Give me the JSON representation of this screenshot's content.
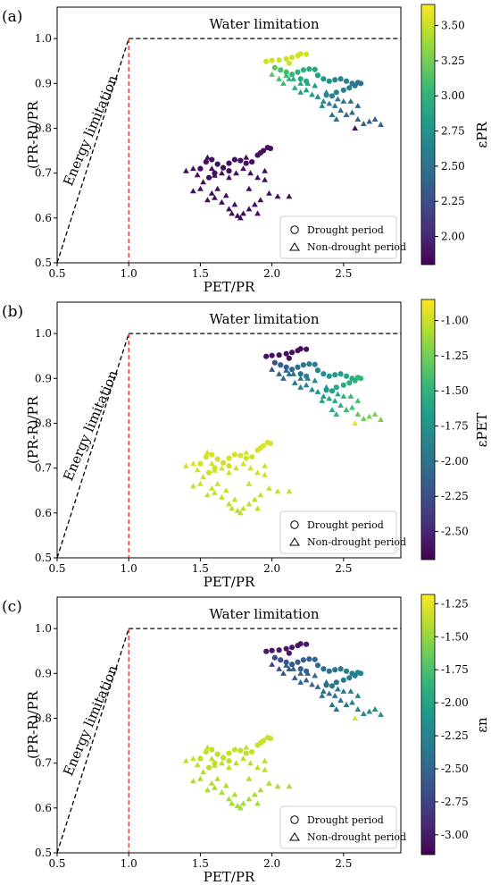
{
  "figure": {
    "colormap": [
      "#440154",
      "#482878",
      "#3e4989",
      "#31688e",
      "#26828e",
      "#1f9e89",
      "#35b779",
      "#6ece58",
      "#b5de2b",
      "#fde725"
    ],
    "legend": {
      "drought": "Drought period",
      "nondrought": "Non-drought period"
    },
    "boundary_colors": {
      "limits": "#000000",
      "pet_equals_pr": "#e8281e"
    }
  },
  "chart_data": [
    {
      "type": "scatter",
      "panel_label": "(a)",
      "xlabel": "PET/PR",
      "ylabel": "(PR-R)/PR",
      "xlim": [
        0.5,
        2.9
      ],
      "ylim": [
        0.5,
        1.07
      ],
      "xticks": [
        "0.5",
        "1.0",
        "1.5",
        "2.0",
        "2.5"
      ],
      "yticks": [
        "0.5",
        "0.6",
        "0.7",
        "0.8",
        "0.9",
        "1.0"
      ],
      "annotations": {
        "water": "Water limitation",
        "energy": "Energy limitation"
      },
      "colorbar": {
        "label": "εPR",
        "range": [
          1.8,
          3.65
        ],
        "ticks": [
          "2.00",
          "2.25",
          "2.50",
          "2.75",
          "3.00",
          "3.25",
          "3.50"
        ]
      }
    },
    {
      "type": "scatter",
      "panel_label": "(b)",
      "xlabel": "PET/PR",
      "ylabel": "(PR-R)/PR",
      "xlim": [
        0.5,
        2.9
      ],
      "ylim": [
        0.5,
        1.07
      ],
      "xticks": [
        "0.5",
        "1.0",
        "1.5",
        "2.0",
        "2.5"
      ],
      "yticks": [
        "0.5",
        "0.6",
        "0.7",
        "0.8",
        "0.9",
        "1.0"
      ],
      "annotations": {
        "water": "Water limitation",
        "energy": "Energy limitation"
      },
      "colorbar": {
        "label": "εPET",
        "range": [
          -2.7,
          -0.85
        ],
        "ticks": [
          "-1.00",
          "-1.25",
          "-1.50",
          "-1.75",
          "-2.00",
          "-2.25",
          "-2.50"
        ]
      }
    },
    {
      "type": "scatter",
      "panel_label": "(c)",
      "xlabel": "PET/PR",
      "ylabel": "(PR-R)/PR",
      "xlim": [
        0.5,
        2.9
      ],
      "ylim": [
        0.5,
        1.07
      ],
      "xticks": [
        "0.5",
        "1.0",
        "1.5",
        "2.0",
        "2.5"
      ],
      "yticks": [
        "0.5",
        "0.6",
        "0.7",
        "0.8",
        "0.9",
        "1.0"
      ],
      "annotations": {
        "water": "Water limitation",
        "energy": "Energy limitation"
      },
      "colorbar": {
        "label": "εn",
        "range": [
          -3.15,
          -1.18
        ],
        "ticks": [
          "-1.25",
          "-1.50",
          "-1.75",
          "-2.00",
          "-2.25",
          "-2.50",
          "-2.75",
          "-3.00"
        ]
      }
    }
  ],
  "points": {
    "drought": [
      [
        2.2,
        0.966
      ],
      [
        2.18,
        0.962
      ],
      [
        2.14,
        0.958
      ],
      [
        2.1,
        0.955
      ],
      [
        2.05,
        0.952
      ],
      [
        2.0,
        0.951
      ],
      [
        1.96,
        0.949
      ],
      [
        2.24,
        0.965
      ],
      [
        2.12,
        0.945
      ],
      [
        2.02,
        0.935
      ],
      [
        2.06,
        0.93
      ],
      [
        2.1,
        0.925
      ],
      [
        2.14,
        0.92
      ],
      [
        2.18,
        0.925
      ],
      [
        2.22,
        0.93
      ],
      [
        2.26,
        0.932
      ],
      [
        2.3,
        0.931
      ],
      [
        2.2,
        0.91
      ],
      [
        2.24,
        0.905
      ],
      [
        2.32,
        0.918
      ],
      [
        2.36,
        0.91
      ],
      [
        2.4,
        0.905
      ],
      [
        2.44,
        0.908
      ],
      [
        2.48,
        0.91
      ],
      [
        2.52,
        0.905
      ],
      [
        2.56,
        0.9
      ],
      [
        2.6,
        0.902
      ],
      [
        2.62,
        0.9
      ],
      [
        2.54,
        0.89
      ],
      [
        2.5,
        0.885
      ],
      [
        2.45,
        0.88
      ],
      [
        2.42,
        0.872
      ],
      [
        2.38,
        0.874
      ],
      [
        2.58,
        0.895
      ],
      [
        1.5,
        0.71
      ],
      [
        1.54,
        0.725
      ],
      [
        1.58,
        0.73
      ],
      [
        1.62,
        0.72
      ],
      [
        1.66,
        0.712
      ],
      [
        1.7,
        0.722
      ],
      [
        1.74,
        0.73
      ],
      [
        1.78,
        0.728
      ],
      [
        1.82,
        0.722
      ],
      [
        1.86,
        0.725
      ],
      [
        1.9,
        0.74
      ],
      [
        1.94,
        0.75
      ],
      [
        1.97,
        0.757
      ],
      [
        1.99,
        0.755
      ],
      [
        1.7,
        0.705
      ],
      [
        1.6,
        0.7
      ],
      [
        1.56,
        0.69
      ],
      [
        1.92,
        0.745
      ]
    ],
    "nondrought": [
      [
        1.4,
        0.705
      ],
      [
        1.45,
        0.71
      ],
      [
        1.48,
        0.696
      ],
      [
        1.52,
        0.68
      ],
      [
        1.55,
        0.735
      ],
      [
        1.58,
        0.71
      ],
      [
        1.6,
        0.695
      ],
      [
        1.65,
        0.7
      ],
      [
        1.7,
        0.69
      ],
      [
        1.75,
        0.7
      ],
      [
        1.8,
        0.71
      ],
      [
        1.85,
        0.7
      ],
      [
        1.9,
        0.69
      ],
      [
        1.95,
        0.685
      ],
      [
        1.62,
        0.665
      ],
      [
        1.58,
        0.655
      ],
      [
        1.5,
        0.665
      ],
      [
        1.45,
        0.66
      ],
      [
        1.55,
        0.64
      ],
      [
        1.6,
        0.645
      ],
      [
        1.65,
        0.635
      ],
      [
        1.7,
        0.62
      ],
      [
        1.72,
        0.61
      ],
      [
        1.76,
        0.605
      ],
      [
        1.8,
        0.61
      ],
      [
        1.84,
        0.62
      ],
      [
        1.88,
        0.63
      ],
      [
        1.92,
        0.64
      ],
      [
        1.98,
        0.655
      ],
      [
        2.04,
        0.648
      ],
      [
        2.12,
        0.648
      ],
      [
        1.9,
        0.61
      ],
      [
        1.78,
        0.6
      ],
      [
        1.68,
        0.65
      ],
      [
        1.74,
        0.63
      ],
      [
        1.84,
        0.665
      ],
      [
        1.95,
        0.705
      ],
      [
        1.82,
        0.735
      ],
      [
        2.08,
        0.9
      ],
      [
        2.12,
        0.91
      ],
      [
        2.16,
        0.89
      ],
      [
        2.2,
        0.88
      ],
      [
        2.24,
        0.885
      ],
      [
        2.28,
        0.875
      ],
      [
        2.32,
        0.87
      ],
      [
        2.36,
        0.86
      ],
      [
        2.4,
        0.855
      ],
      [
        2.44,
        0.85
      ],
      [
        2.48,
        0.84
      ],
      [
        2.52,
        0.83
      ],
      [
        2.56,
        0.835
      ],
      [
        2.6,
        0.82
      ],
      [
        2.64,
        0.81
      ],
      [
        2.68,
        0.815
      ],
      [
        2.72,
        0.82
      ],
      [
        2.76,
        0.808
      ],
      [
        2.5,
        0.86
      ],
      [
        2.55,
        0.86
      ],
      [
        2.6,
        0.85
      ],
      [
        2.46,
        0.865
      ],
      [
        2.3,
        0.895
      ],
      [
        2.25,
        0.9
      ],
      [
        2.2,
        0.9
      ],
      [
        2.15,
        0.91
      ],
      [
        2.1,
        0.918
      ],
      [
        2.05,
        0.91
      ],
      [
        2.0,
        0.92
      ],
      [
        2.35,
        0.85
      ],
      [
        2.45,
        0.82
      ],
      [
        2.58,
        0.8
      ],
      [
        2.42,
        0.83
      ],
      [
        2.38,
        0.88
      ]
    ]
  }
}
